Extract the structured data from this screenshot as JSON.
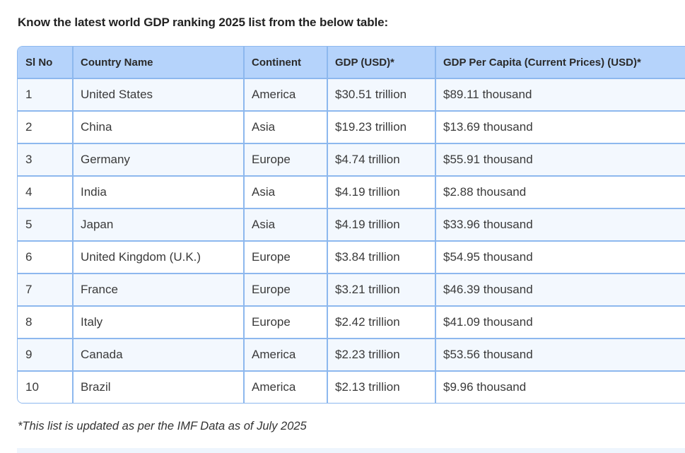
{
  "intro": "Know the latest world GDP ranking 2025 list from the below table:",
  "table": {
    "headers": [
      "Sl No",
      "Country Name",
      "Continent",
      "GDP (USD)*",
      "GDP Per Capita (Current Prices) (USD)*"
    ],
    "rows": [
      [
        "1",
        "United States",
        "America",
        "$30.51 trillion",
        "$89.11 thousand"
      ],
      [
        "2",
        "China",
        "Asia",
        "$19.23 trillion",
        "$13.69 thousand"
      ],
      [
        "3",
        "Germany",
        "Europe",
        "$4.74 trillion",
        "$55.91 thousand"
      ],
      [
        "4",
        "India",
        "Asia",
        "$4.19 trillion",
        "$2.88 thousand"
      ],
      [
        "5",
        "Japan",
        "Asia",
        "$4.19 trillion",
        "$33.96 thousand"
      ],
      [
        "6",
        "United Kingdom (U.K.)",
        "Europe",
        "$3.84 trillion",
        "$54.95 thousand"
      ],
      [
        "7",
        "France",
        "Europe",
        "$3.21 trillion",
        "$46.39 thousand"
      ],
      [
        "8",
        "Italy",
        "Europe",
        "$2.42 trillion",
        "$41.09 thousand"
      ],
      [
        "9",
        "Canada",
        "America",
        "$2.23 trillion",
        "$53.56 thousand"
      ],
      [
        "10",
        "Brazil",
        "America",
        "$2.13 trillion",
        "$9.96 thousand"
      ]
    ]
  },
  "note": "*This list is updated as per the IMF Data as of July 2025",
  "colors": {
    "header_bg": "#b5d3fb",
    "border": "#8db8ee",
    "stripe": "#f3f8fe"
  }
}
